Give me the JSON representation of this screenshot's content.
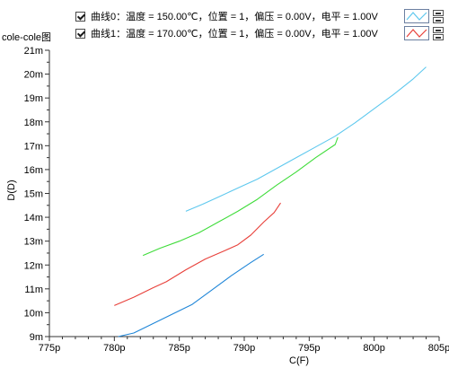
{
  "legend": {
    "items": [
      {
        "label": "曲线0：温度 = 150.00℃，位置 = 1，偏压 = 0.00V，电平 = 1.00V",
        "color": "#5ec8ee"
      },
      {
        "label": "曲线1：温度 = 170.00℃，位置 = 1，偏压 = 0.00V，电平 = 1.00V",
        "color": "#e8403a"
      }
    ]
  },
  "chart_data": {
    "type": "line",
    "title": "cole-cole图",
    "xlabel": "C(F)",
    "ylabel": "D(D)",
    "xlim": [
      775,
      805
    ],
    "ylim": [
      9,
      21
    ],
    "x_unit": "p",
    "y_unit": "m",
    "x_ticks": [
      "775p",
      "780p",
      "785p",
      "790p",
      "795p",
      "800p",
      "805p"
    ],
    "y_ticks": [
      "9m",
      "10m",
      "11m",
      "12m",
      "13m",
      "14m",
      "15m",
      "16m",
      "17m",
      "18m",
      "19m",
      "20m",
      "21m"
    ],
    "minor_ticks_x_per_major": 4,
    "minor_ticks_y_per_major": 1,
    "grid": false,
    "series": [
      {
        "name": "曲线0：温度 = 150.00℃，位置 = 1，偏压 = 0.00V，电平 = 1.00V",
        "color": "#5ec8ee",
        "x": [
          785.5,
          786.8,
          788.2,
          789.6,
          791.0,
          792.5,
          794.0,
          795.5,
          797.0,
          798.5,
          800.0,
          801.5,
          803.0,
          804.0
        ],
        "y": [
          14.25,
          14.55,
          14.9,
          15.25,
          15.6,
          16.05,
          16.5,
          16.95,
          17.4,
          17.95,
          18.55,
          19.15,
          19.8,
          20.3
        ]
      },
      {
        "name": "",
        "color": "#3fdc3a",
        "x": [
          782.2,
          783.5,
          785.0,
          786.5,
          788.0,
          789.5,
          791.0,
          792.5,
          794.0,
          795.5,
          797.0,
          797.2
        ],
        "y": [
          12.4,
          12.7,
          13.0,
          13.35,
          13.8,
          14.25,
          14.75,
          15.35,
          15.9,
          16.5,
          17.05,
          17.35
        ]
      },
      {
        "name": "曲线1：温度 = 170.00℃，位置 = 1，偏压 = 0.00V，电平 = 1.00V",
        "color": "#e8403a",
        "x": [
          780.0,
          781.5,
          783.0,
          784.0,
          785.5,
          787.0,
          788.5,
          789.5,
          790.5,
          791.5,
          792.3,
          792.8
        ],
        "y": [
          10.3,
          10.65,
          11.05,
          11.3,
          11.8,
          12.25,
          12.6,
          12.85,
          13.25,
          13.8,
          14.2,
          14.6
        ]
      },
      {
        "name": "",
        "color": "#1f86d8",
        "x": [
          780.3,
          781.5,
          783.0,
          784.5,
          786.0,
          787.5,
          789.0,
          790.5,
          791.5
        ],
        "y": [
          9.0,
          9.15,
          9.55,
          9.95,
          10.35,
          10.95,
          11.55,
          12.1,
          12.45
        ]
      }
    ]
  }
}
